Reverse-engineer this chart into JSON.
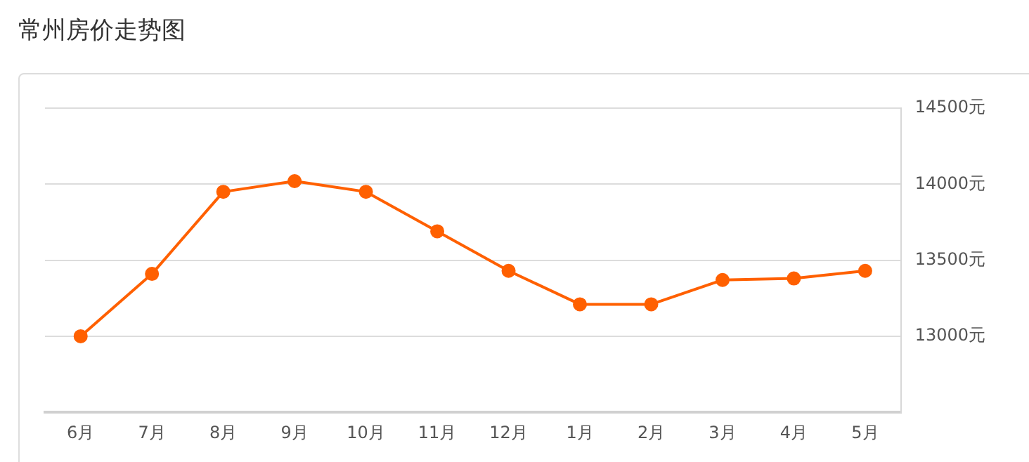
{
  "chart_data": {
    "type": "line",
    "title": "常州房价走势图",
    "categories": [
      "6月",
      "7月",
      "8月",
      "9月",
      "10月",
      "11月",
      "12月",
      "1月",
      "2月",
      "3月",
      "4月",
      "5月"
    ],
    "series": [
      {
        "color": "#ff6000",
        "values": [
          13000,
          13410,
          13950,
          14020,
          13950,
          13690,
          13430,
          13210,
          13210,
          13370,
          13380,
          13430
        ]
      }
    ],
    "ylim": [
      12500,
      14500
    ],
    "yticks": [
      {
        "value": 13000,
        "label": "13000元"
      },
      {
        "value": 13500,
        "label": "13500元"
      },
      {
        "value": 14000,
        "label": "14000元"
      },
      {
        "value": 14500,
        "label": "14500元"
      }
    ],
    "grid": "y",
    "legend": false,
    "marker": "circle",
    "line_style": "solid"
  }
}
